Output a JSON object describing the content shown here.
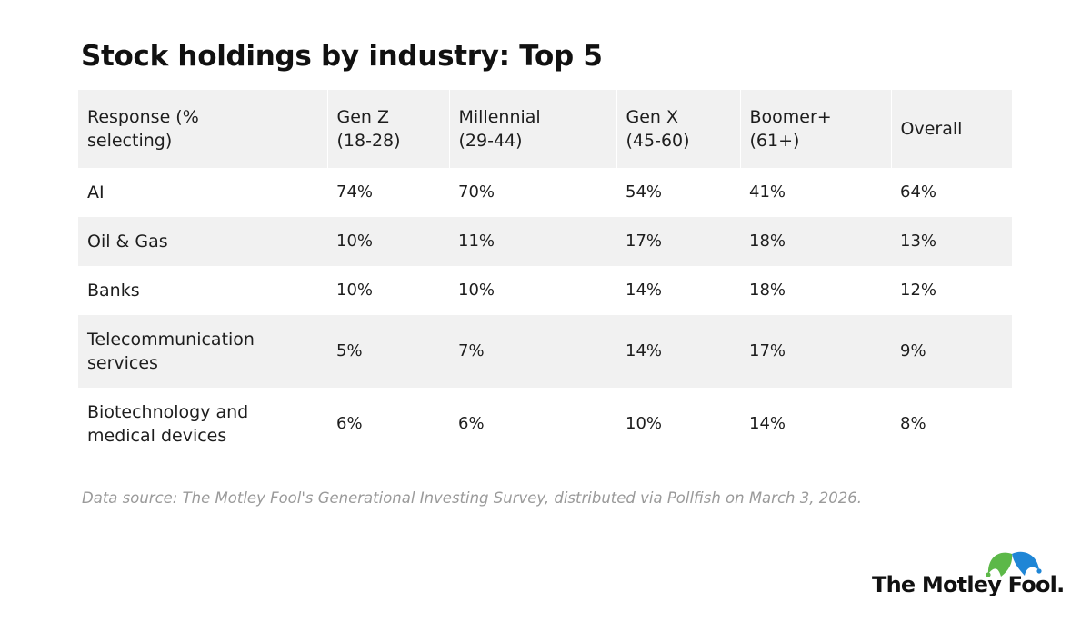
{
  "title": "Stock holdings by industry: Top 5",
  "chart_data": {
    "type": "table",
    "title": "Stock holdings by industry: Top 5",
    "columns": [
      [
        "Response (%",
        "selecting)"
      ],
      [
        "Gen Z",
        "(18-28)"
      ],
      [
        "Millennial",
        "(29-44)"
      ],
      [
        "Gen X",
        "(45-60)"
      ],
      [
        "Boomer+",
        "(61+)"
      ],
      [
        "Overall"
      ]
    ],
    "rows": [
      {
        "label": [
          "AI"
        ],
        "values": [
          "74%",
          "70%",
          "54%",
          "41%",
          "64%"
        ]
      },
      {
        "label": [
          "Oil & Gas"
        ],
        "values": [
          "10%",
          "11%",
          "17%",
          "18%",
          "13%"
        ]
      },
      {
        "label": [
          "Banks"
        ],
        "values": [
          "10%",
          "10%",
          "14%",
          "18%",
          "12%"
        ]
      },
      {
        "label": [
          "Telecommunication",
          "services"
        ],
        "values": [
          "5%",
          "7%",
          "14%",
          "17%",
          "9%"
        ]
      },
      {
        "label": [
          "Biotechnology and",
          "medical devices"
        ],
        "values": [
          "6%",
          "6%",
          "10%",
          "14%",
          "8%"
        ]
      }
    ]
  },
  "source": "Data source: The Motley Fool's Generational Investing Survey, distributed via Pollfish on March 3, 2026.",
  "logo": {
    "text": "The Motley Fool.",
    "colors": {
      "green": "#5cb848",
      "blue": "#1f86d6"
    }
  }
}
